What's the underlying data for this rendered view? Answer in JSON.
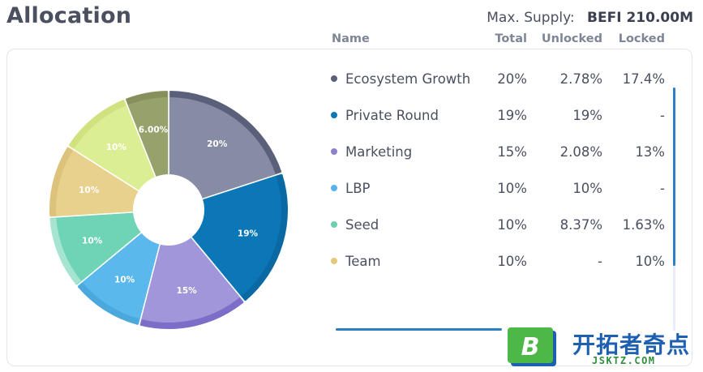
{
  "header": {
    "title": "Allocation",
    "supply_label": "Max. Supply:",
    "supply_value": "BEFI 210.00M"
  },
  "table": {
    "headers": {
      "name": "Name",
      "total": "Total",
      "unlocked": "Unlocked",
      "locked": "Locked"
    },
    "rows": [
      {
        "name": "Ecosystem Growth",
        "total": "20%",
        "unlocked": "2.78%",
        "locked": "17.4%",
        "color": "#5a6079"
      },
      {
        "name": "Private Round",
        "total": "19%",
        "unlocked": "19%",
        "locked": "-",
        "color": "#0c77b7"
      },
      {
        "name": "Marketing",
        "total": "15%",
        "unlocked": "2.08%",
        "locked": "13%",
        "color": "#8e80cf"
      },
      {
        "name": "LBP",
        "total": "10%",
        "unlocked": "10%",
        "locked": "-",
        "color": "#5ab2e8"
      },
      {
        "name": "Seed",
        "total": "10%",
        "unlocked": "8.37%",
        "locked": "1.63%",
        "color": "#6bcfb0"
      },
      {
        "name": "Team",
        "total": "10%",
        "unlocked": "-",
        "locked": "10%",
        "color": "#e5c97a"
      }
    ]
  },
  "chart_data": {
    "type": "pie",
    "slices": [
      {
        "label": "20%",
        "value": 20,
        "color": "#868ca3",
        "accent": "#5a6079"
      },
      {
        "label": "19%",
        "value": 19,
        "color": "#0c77b7",
        "accent": "#0a68a3"
      },
      {
        "label": "15%",
        "value": 15,
        "color": "#a196da",
        "accent": "#7c6ec8"
      },
      {
        "label": "10%",
        "value": 10,
        "color": "#5ab8ec",
        "accent": "#4aa8dc"
      },
      {
        "label": "10%",
        "value": 10,
        "color": "#6fd3b6",
        "accent": "#a6e4d2"
      },
      {
        "label": "10%",
        "value": 10,
        "color": "#e8d18c",
        "accent": "#dcc27a"
      },
      {
        "label": "10%",
        "value": 10,
        "color": "#dcee93",
        "accent": "#cfe27f"
      },
      {
        "label": "6.00%",
        "value": 6,
        "color": "#97a16b",
        "accent": "#87905c"
      }
    ]
  },
  "logo": {
    "text": "开拓者奇点",
    "sub": "JSKTZ.COM",
    "badge": "B"
  }
}
